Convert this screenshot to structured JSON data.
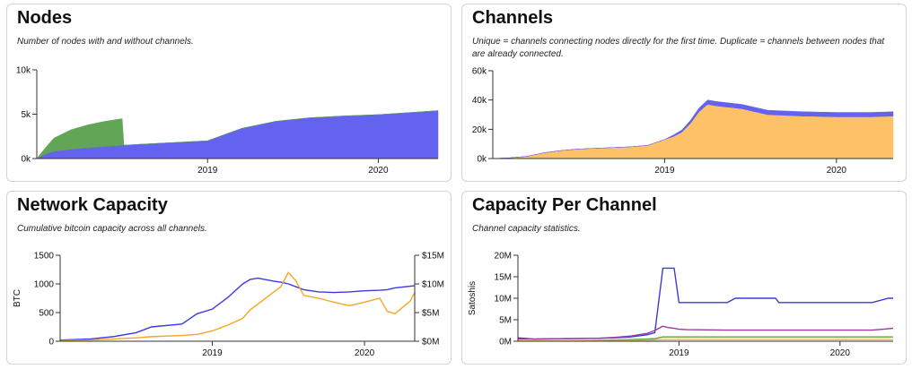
{
  "panels": [
    {
      "title": "Nodes",
      "description": "Number of nodes with and without channels.",
      "chart_data": {
        "type": "area",
        "x": [
          2018.0,
          2018.05,
          2018.1,
          2018.2,
          2018.3,
          2018.4,
          2018.5,
          2018.51,
          2018.6,
          2018.7,
          2018.8,
          2018.9,
          2019.0,
          2019.1,
          2019.2,
          2019.4,
          2019.6,
          2019.8,
          2020.0,
          2020.2,
          2020.35
        ],
        "series": [
          {
            "name": "",
            "color": "#5b5bef",
            "values": [
              0,
              500,
              800,
              1050,
              1200,
              1350,
              1500,
              1500,
              1600,
              1700,
              1800,
              1900,
              2000,
              2700,
              3400,
              4200,
              4600,
              4800,
              4950,
              5200,
              5400
            ]
          },
          {
            "name": "",
            "color": "#5aa14f",
            "values": [
              0,
              700,
              1500,
              2200,
              2600,
              2850,
              3000,
              0,
              0,
              0,
              0,
              0,
              0,
              0,
              0,
              0,
              0,
              0,
              0,
              0,
              0
            ]
          }
        ],
        "xlim": [
          2018.0,
          2020.35
        ],
        "xticks": [
          {
            "v": 2019.0,
            "label": "2019"
          },
          {
            "v": 2020.0,
            "label": "2020"
          }
        ],
        "ylim": [
          0,
          10000
        ],
        "yticks": [
          {
            "v": 0,
            "label": "0k"
          },
          {
            "v": 5000,
            "label": "5k"
          },
          {
            "v": 10000,
            "label": "10k"
          }
        ],
        "ylabel": ""
      }
    },
    {
      "title": "Channels",
      "description": "Unique = channels connecting nodes directly for the first time. Duplicate = channels between nodes that are already connected.",
      "chart_data": {
        "type": "area",
        "x": [
          2018.0,
          2018.1,
          2018.2,
          2018.3,
          2018.4,
          2018.5,
          2018.6,
          2018.7,
          2018.8,
          2018.9,
          2018.95,
          2019.0,
          2019.05,
          2019.1,
          2019.15,
          2019.2,
          2019.25,
          2019.3,
          2019.45,
          2019.6,
          2019.8,
          2020.0,
          2020.2,
          2020.33
        ],
        "series": [
          {
            "name": "",
            "color": "#fdbf5f",
            "values": [
              0,
              500,
              1500,
              4000,
              5500,
              6500,
              7000,
              7500,
              8000,
              9000,
              11000,
              13000,
              15000,
              18000,
              24000,
              32000,
              37000,
              36000,
              34000,
              30000,
              29000,
              28500,
              28500,
              29000
            ]
          },
          {
            "name": "",
            "color": "#5b5bef",
            "values": [
              0,
              0,
              0,
              0,
              0,
              0,
              0,
              0,
              0,
              0,
              0,
              0,
              1000,
              1500,
              2000,
              2500,
              3000,
              3000,
              3000,
              3000,
              3000,
              3000,
              3000,
              3000
            ]
          }
        ],
        "xlim": [
          2018.0,
          2020.33
        ],
        "xticks": [
          {
            "v": 2019.0,
            "label": "2019"
          },
          {
            "v": 2020.0,
            "label": "2020"
          }
        ],
        "ylim": [
          0,
          60000
        ],
        "yticks": [
          {
            "v": 0,
            "label": "0k"
          },
          {
            "v": 20000,
            "label": "20k"
          },
          {
            "v": 40000,
            "label": "40k"
          },
          {
            "v": 60000,
            "label": "60k"
          }
        ],
        "ylabel": ""
      }
    },
    {
      "title": "Network Capacity",
      "description": "Cumulative bitcoin capacity across all channels.",
      "chart_data": {
        "type": "line",
        "x": [
          2018.0,
          2018.2,
          2018.35,
          2018.5,
          2018.6,
          2018.8,
          2018.9,
          2018.95,
          2019.0,
          2019.1,
          2019.2,
          2019.25,
          2019.3,
          2019.4,
          2019.45,
          2019.5,
          2019.55,
          2019.6,
          2019.7,
          2019.8,
          2019.9,
          2020.0,
          2020.1,
          2020.15,
          2020.2,
          2020.3,
          2020.33
        ],
        "series": [
          {
            "name": "",
            "color": "#3a3ae0",
            "axis": "left",
            "values": [
              20,
              40,
              80,
              150,
              250,
              300,
              480,
              520,
              560,
              760,
              1000,
              1080,
              1100,
              1050,
              1030,
              1000,
              950,
              900,
              860,
              850,
              860,
              880,
              890,
              900,
              930,
              960,
              970
            ]
          },
          {
            "name": "",
            "color": "#f5a623",
            "axis": "right",
            "values": [
              0.1,
              0.2,
              0.4,
              0.6,
              0.8,
              1.0,
              1.2,
              1.5,
              1.8,
              2.8,
              4.0,
              5.5,
              6.5,
              8.5,
              9.5,
              12.0,
              10.5,
              8.0,
              7.5,
              6.8,
              6.2,
              6.8,
              7.5,
              5.2,
              4.8,
              7.0,
              8.5
            ]
          }
        ],
        "xlim": [
          2018.0,
          2020.33
        ],
        "xticks": [
          {
            "v": 2019.0,
            "label": "2019"
          },
          {
            "v": 2020.0,
            "label": "2020"
          }
        ],
        "ylim": [
          0,
          1500
        ],
        "yticks": [
          {
            "v": 0,
            "label": "0"
          },
          {
            "v": 500,
            "label": "500"
          },
          {
            "v": 1000,
            "label": "1000"
          },
          {
            "v": 1500,
            "label": "1500"
          }
        ],
        "ylabel": "BTC",
        "y2lim": [
          0,
          15
        ],
        "y2ticks": [
          {
            "v": 0,
            "label": "$0M"
          },
          {
            "v": 5,
            "label": "$5M"
          },
          {
            "v": 10,
            "label": "$10M"
          },
          {
            "v": 15,
            "label": "$15M"
          }
        ]
      }
    },
    {
      "title": "Capacity Per Channel",
      "description": "Channel capacity statistics.",
      "chart_data": {
        "type": "line",
        "x": [
          2018.0,
          2018.1,
          2018.3,
          2018.5,
          2018.6,
          2018.7,
          2018.8,
          2018.85,
          2018.9,
          2018.93,
          2018.97,
          2019.0,
          2019.05,
          2019.3,
          2019.35,
          2019.6,
          2019.62,
          2019.8,
          2019.9,
          2020.0,
          2020.2,
          2020.3,
          2020.33
        ],
        "series": [
          {
            "name": "",
            "color": "#3a3ae0",
            "values": [
              0.8,
              0.5,
              0.6,
              0.7,
              0.8,
              1.0,
              1.5,
              2.0,
              17.0,
              17.0,
              17.0,
              9.0,
              9.0,
              9.0,
              10.0,
              10.0,
              9.0,
              9.0,
              9.0,
              9.0,
              9.0,
              10.0,
              10.0
            ]
          },
          {
            "name": "",
            "color": "#9b3a9b",
            "values": [
              0.5,
              0.5,
              0.6,
              0.7,
              0.9,
              1.2,
              1.8,
              2.5,
              3.5,
              3.2,
              3.0,
              2.8,
              2.7,
              2.6,
              2.6,
              2.6,
              2.6,
              2.6,
              2.6,
              2.6,
              2.6,
              2.9,
              3.0
            ]
          },
          {
            "name": "",
            "color": "#5aa14f",
            "values": [
              0.1,
              0.1,
              0.1,
              0.2,
              0.3,
              0.4,
              0.5,
              0.6,
              1.0,
              1.0,
              1.0,
              1.0,
              1.0,
              1.0,
              1.0,
              1.0,
              1.0,
              1.0,
              1.0,
              1.0,
              1.0,
              1.0,
              1.0
            ]
          },
          {
            "name": "",
            "color": "#e8b84d",
            "values": [
              0.05,
              0.05,
              0.05,
              0.1,
              0.15,
              0.2,
              0.25,
              0.3,
              0.4,
              0.4,
              0.4,
              0.4,
              0.4,
              0.4,
              0.4,
              0.4,
              0.4,
              0.4,
              0.4,
              0.4,
              0.4,
              0.4,
              0.4
            ]
          }
        ],
        "xlim": [
          2018.0,
          2020.33
        ],
        "xticks": [
          {
            "v": 2019.0,
            "label": "2019"
          },
          {
            "v": 2020.0,
            "label": "2020"
          }
        ],
        "ylim": [
          0,
          20
        ],
        "yticks": [
          {
            "v": 0,
            "label": "0M"
          },
          {
            "v": 5,
            "label": "5M"
          },
          {
            "v": 10,
            "label": "10M"
          },
          {
            "v": 15,
            "label": "15M"
          },
          {
            "v": 20,
            "label": "20M"
          }
        ],
        "ylabel": "Satoshis"
      }
    }
  ]
}
